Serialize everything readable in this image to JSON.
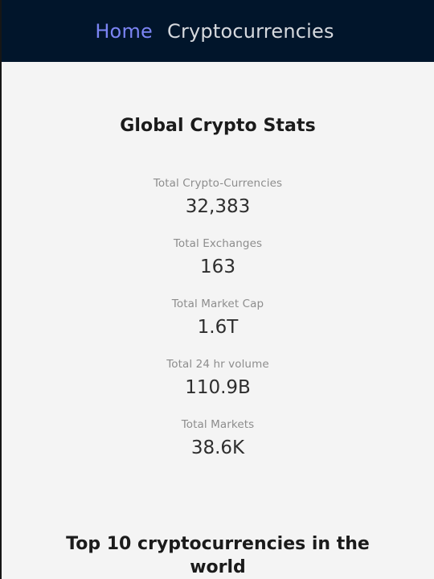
{
  "nav": {
    "home_label": "Home",
    "crypto_label": "Cryptocurrencies"
  },
  "main": {
    "title": "Global Crypto Stats",
    "stats": [
      {
        "label": "Total Crypto-Currencies",
        "value": "32,383"
      },
      {
        "label": "Total Exchanges",
        "value": "163"
      },
      {
        "label": "Total Market Cap",
        "value": "1.6T"
      },
      {
        "label": "Total 24 hr volume",
        "value": "110.9B"
      },
      {
        "label": "Total Markets",
        "value": "38.6K"
      }
    ],
    "top10_title": "Top 10 cryptocurrencies in the world"
  },
  "colors": {
    "navbar_bg": "#01152b",
    "home_link": "#7b84f3",
    "crypto_link": "#d6d9de",
    "page_bg": "#f4f4f4"
  }
}
